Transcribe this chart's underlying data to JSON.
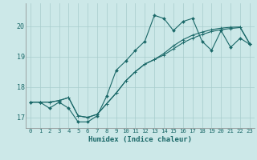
{
  "xlabel": "Humidex (Indice chaleur)",
  "bg_color": "#cce8e8",
  "grid_color": "#a8cccc",
  "line_color": "#1a6868",
  "xlim": [
    -0.5,
    23.5
  ],
  "ylim": [
    16.65,
    20.75
  ],
  "yticks": [
    17,
    18,
    19,
    20
  ],
  "xtick_labels": [
    "0",
    "1",
    "2",
    "3",
    "4",
    "5",
    "6",
    "7",
    "8",
    "9",
    "10",
    "11",
    "12",
    "13",
    "14",
    "15",
    "16",
    "17",
    "18",
    "19",
    "20",
    "21",
    "22",
    "23"
  ],
  "series_jagged": [
    17.5,
    17.5,
    17.3,
    17.5,
    17.3,
    16.85,
    16.85,
    17.05,
    17.7,
    18.55,
    18.85,
    19.2,
    19.5,
    20.35,
    20.25,
    19.85,
    20.15,
    20.25,
    19.5,
    19.2,
    19.85,
    19.3,
    19.6,
    19.4
  ],
  "series_line1": [
    17.5,
    17.5,
    17.5,
    17.55,
    17.65,
    17.05,
    17.0,
    17.1,
    17.45,
    17.8,
    18.2,
    18.5,
    18.75,
    18.9,
    19.05,
    19.25,
    19.45,
    19.6,
    19.72,
    19.82,
    19.88,
    19.92,
    19.95,
    19.42
  ],
  "series_line2": [
    17.5,
    17.5,
    17.5,
    17.55,
    17.65,
    17.05,
    17.0,
    17.1,
    17.45,
    17.8,
    18.2,
    18.5,
    18.75,
    18.9,
    19.1,
    19.35,
    19.55,
    19.7,
    19.8,
    19.88,
    19.93,
    19.96,
    19.97,
    19.42
  ]
}
